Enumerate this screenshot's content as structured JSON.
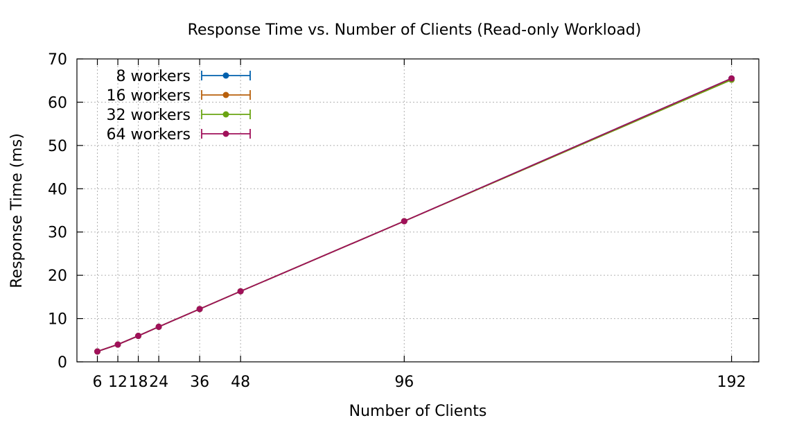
{
  "chart_data": {
    "type": "line",
    "title": "Response Time vs. Number of Clients (Read-only Workload)",
    "xlabel": "Number of Clients",
    "ylabel": "Response Time (ms)",
    "x": [
      6,
      12,
      18,
      24,
      36,
      48,
      96,
      192
    ],
    "x_tick_labels": [
      "6",
      "12",
      "18",
      "24",
      "36",
      "48",
      "96",
      "192"
    ],
    "y_ticks": [
      0,
      10,
      20,
      30,
      40,
      50,
      60,
      70
    ],
    "xlim": [
      0,
      200
    ],
    "ylim": [
      0,
      70
    ],
    "grid": true,
    "legend_position": "top-left",
    "series": [
      {
        "name": "8 workers",
        "color": "#0060ad",
        "values": [
          2.4,
          4.0,
          6.0,
          8.1,
          12.2,
          16.3,
          32.5,
          65.5
        ]
      },
      {
        "name": "16 workers",
        "color": "#b8600c",
        "values": [
          2.4,
          4.0,
          6.0,
          8.1,
          12.2,
          16.3,
          32.5,
          65.2
        ]
      },
      {
        "name": "32 workers",
        "color": "#6aa412",
        "values": [
          2.4,
          4.0,
          6.0,
          8.1,
          12.2,
          16.3,
          32.5,
          65.2
        ]
      },
      {
        "name": "64 workers",
        "color": "#a0105a",
        "values": [
          2.4,
          4.0,
          6.0,
          8.1,
          12.2,
          16.3,
          32.5,
          65.5
        ]
      }
    ]
  }
}
